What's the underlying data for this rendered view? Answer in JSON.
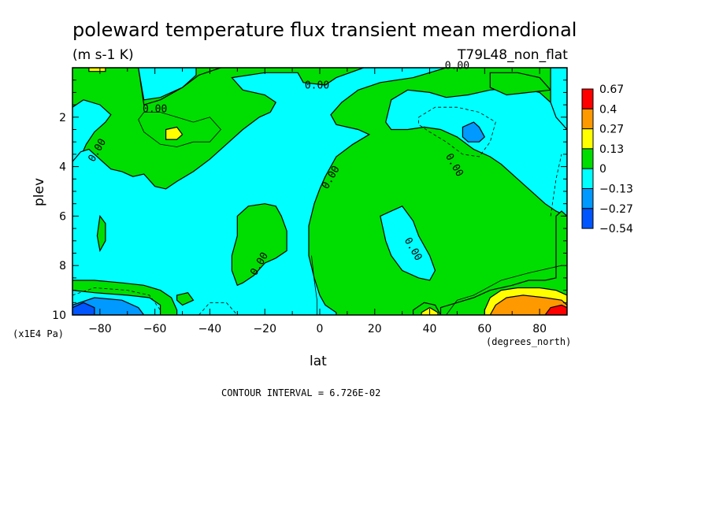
{
  "chart_data": {
    "type": "heatmap",
    "title": "poleward temperature flux transient mean merdional",
    "units": "(m s-1 K)",
    "dataset_label": "T79L48_non_flat",
    "xlabel": "lat",
    "ylabel": "plev",
    "x_units": "(degrees_north)",
    "y_units": "(x1E4 Pa)",
    "xlim": [
      -90,
      90
    ],
    "ylim": [
      10,
      0
    ],
    "x_ticks": [
      -80,
      -60,
      -40,
      -20,
      0,
      20,
      40,
      60,
      80
    ],
    "y_ticks": [
      2,
      4,
      6,
      8,
      10
    ],
    "contour_interval_text": "CONTOUR INTERVAL = 6.726E-02",
    "contour_labels": [
      "0.00",
      "0.00",
      "0.00",
      "0.00",
      "0.00",
      "0.00",
      "0.00",
      "0.00"
    ],
    "colorbar": {
      "levels": [
        "0.67",
        "0.4",
        "0.27",
        "0.13",
        "0",
        "-0.13",
        "-0.27",
        "-0.54"
      ],
      "colors": [
        "#ff0000",
        "#ff9900",
        "#ffff00",
        "#00dd00",
        "#00ffff",
        "#0099ff",
        "#0055ff"
      ]
    },
    "regions": [
      {
        "color": "#00dd00",
        "points": [
          [
            -90,
            0
          ],
          [
            -66,
            0
          ],
          [
            -64,
            1.5
          ],
          [
            -58,
            1.3
          ],
          [
            -50,
            0.8
          ],
          [
            -44,
            0.3
          ],
          [
            -36,
            0
          ],
          [
            -90,
            0
          ]
        ]
      },
      {
        "color": "#00ffff",
        "points": [
          [
            -66,
            0
          ],
          [
            -45,
            0
          ],
          [
            -45,
            0.3
          ],
          [
            -50,
            0.8
          ],
          [
            -58,
            1.2
          ],
          [
            -64,
            1.3
          ]
        ]
      },
      {
        "color": "#00ffff",
        "points": [
          [
            -90,
            1.6
          ],
          [
            -86,
            1.3
          ],
          [
            -80,
            1.5
          ],
          [
            -76,
            1.9
          ],
          [
            -78,
            2.2
          ],
          [
            -82,
            2.6
          ],
          [
            -85,
            3.1
          ],
          [
            -87,
            3.6
          ],
          [
            -90,
            3.8
          ]
        ]
      },
      {
        "color": "#00ffff",
        "points": [
          [
            -90,
            3.8
          ],
          [
            -87,
            3.4
          ],
          [
            -84,
            3.3
          ],
          [
            -80,
            3.7
          ],
          [
            -76,
            4.1
          ],
          [
            -72,
            4.2
          ],
          [
            -68,
            4.4
          ],
          [
            -64,
            4.3
          ],
          [
            -60,
            4.8
          ],
          [
            -56,
            4.9
          ],
          [
            -52,
            4.6
          ],
          [
            -46,
            4.2
          ],
          [
            -40,
            3.7
          ],
          [
            -34,
            3.1
          ],
          [
            -28,
            2.5
          ],
          [
            -22,
            2.0
          ],
          [
            -18,
            1.8
          ],
          [
            -16,
            1.4
          ],
          [
            -20,
            1.1
          ],
          [
            -28,
            0.9
          ],
          [
            -32,
            0.4
          ],
          [
            -20,
            0.2
          ],
          [
            -8,
            0.2
          ],
          [
            -6,
            0.6
          ],
          [
            2,
            0.7
          ],
          [
            6,
            0.4
          ],
          [
            16,
            0
          ],
          [
            46,
            0
          ],
          [
            34,
            0.4
          ],
          [
            22,
            0.6
          ],
          [
            14,
            0.9
          ],
          [
            8,
            1.4
          ],
          [
            4,
            1.9
          ],
          [
            6,
            2.3
          ],
          [
            14,
            2.5
          ],
          [
            18,
            2.7
          ],
          [
            12,
            3.1
          ],
          [
            6,
            3.6
          ],
          [
            2,
            4.4
          ],
          [
            0,
            4.9
          ],
          [
            -2,
            5.5
          ],
          [
            -4,
            6.4
          ],
          [
            -4,
            7.6
          ],
          [
            -2,
            8.5
          ],
          [
            0,
            9.2
          ],
          [
            2,
            9.6
          ],
          [
            6,
            9.9
          ],
          [
            6,
            10
          ],
          [
            -90,
            10
          ]
        ]
      },
      {
        "color": "#00dd00",
        "points": [
          [
            -30,
            6.0
          ],
          [
            -26,
            5.6
          ],
          [
            -20,
            5.5
          ],
          [
            -16,
            5.6
          ],
          [
            -14,
            6.0
          ],
          [
            -12,
            6.6
          ],
          [
            -12,
            7.4
          ],
          [
            -16,
            7.7
          ],
          [
            -20,
            7.9
          ],
          [
            -24,
            8.4
          ],
          [
            -28,
            8.7
          ],
          [
            -30,
            8.8
          ],
          [
            -32,
            8.2
          ],
          [
            -32,
            7.6
          ],
          [
            -30,
            6.8
          ]
        ]
      },
      {
        "color": "#00dd00",
        "points": [
          [
            -80,
            6.0
          ],
          [
            -78,
            6.3
          ],
          [
            -78,
            7.0
          ],
          [
            -80,
            7.4
          ],
          [
            -81,
            6.8
          ]
        ]
      },
      {
        "color": "#00ffff",
        "points": [
          [
            22,
            6.0
          ],
          [
            26,
            5.8
          ],
          [
            30,
            5.6
          ],
          [
            34,
            6.2
          ],
          [
            36,
            6.8
          ],
          [
            40,
            7.6
          ],
          [
            42,
            8.2
          ],
          [
            40,
            8.6
          ],
          [
            36,
            8.5
          ],
          [
            30,
            8.2
          ],
          [
            26,
            7.6
          ],
          [
            24,
            7.0
          ]
        ]
      },
      {
        "color": "#00ffff",
        "points": [
          [
            24,
            2.2
          ],
          [
            26,
            1.3
          ],
          [
            32,
            0.9
          ],
          [
            40,
            1.0
          ],
          [
            46,
            1.2
          ],
          [
            54,
            1.1
          ],
          [
            62,
            0.9
          ],
          [
            72,
            0.8
          ],
          [
            80,
            1.0
          ],
          [
            84,
            1.4
          ],
          [
            88,
            2.0
          ],
          [
            90,
            2.2
          ],
          [
            90,
            6.0
          ],
          [
            86,
            5.8
          ],
          [
            82,
            5.5
          ],
          [
            78,
            5.1
          ],
          [
            72,
            4.5
          ],
          [
            66,
            3.9
          ],
          [
            62,
            3.6
          ],
          [
            56,
            3.3
          ],
          [
            50,
            2.8
          ],
          [
            44,
            2.5
          ],
          [
            38,
            2.4
          ],
          [
            32,
            2.5
          ],
          [
            26,
            2.5
          ]
        ]
      },
      {
        "color": "#00dd00",
        "points": [
          [
            62,
            0.2
          ],
          [
            72,
            0.2
          ],
          [
            80,
            0.4
          ],
          [
            84,
            0.9
          ],
          [
            76,
            1.0
          ],
          [
            68,
            1.1
          ],
          [
            62,
            0.8
          ]
        ]
      },
      {
        "color": "#00ffff",
        "points": [
          [
            84,
            0
          ],
          [
            90,
            0
          ],
          [
            90,
            2.5
          ],
          [
            86,
            2.0
          ],
          [
            84,
            1.4
          ]
        ]
      },
      {
        "color": "#0099ff",
        "points": [
          [
            52,
            2.4
          ],
          [
            56,
            2.2
          ],
          [
            58,
            2.4
          ],
          [
            60,
            2.8
          ],
          [
            58,
            3.0
          ],
          [
            54,
            3.0
          ],
          [
            52,
            2.8
          ]
        ]
      },
      {
        "color": "#ffff00",
        "points": [
          [
            -56,
            2.5
          ],
          [
            -52,
            2.4
          ],
          [
            -50,
            2.7
          ],
          [
            -52,
            2.9
          ],
          [
            -56,
            2.9
          ]
        ]
      },
      {
        "color": "#00dd00",
        "points": [
          [
            -90,
            8.6
          ],
          [
            -82,
            8.6
          ],
          [
            -72,
            8.7
          ],
          [
            -64,
            8.8
          ],
          [
            -58,
            9.0
          ],
          [
            -54,
            9.3
          ],
          [
            -52,
            9.8
          ],
          [
            -52,
            10
          ],
          [
            -90,
            10
          ]
        ]
      },
      {
        "color": "#00ffff",
        "points": [
          [
            -90,
            9.0
          ],
          [
            -82,
            9.1
          ],
          [
            -70,
            9.2
          ],
          [
            -62,
            9.3
          ],
          [
            -58,
            9.6
          ],
          [
            -58,
            10
          ],
          [
            -90,
            10
          ]
        ]
      },
      {
        "color": "#0099ff",
        "points": [
          [
            -90,
            9.6
          ],
          [
            -82,
            9.3
          ],
          [
            -72,
            9.4
          ],
          [
            -66,
            9.7
          ],
          [
            -64,
            10
          ],
          [
            -90,
            10
          ]
        ]
      },
      {
        "color": "#0055ff",
        "points": [
          [
            -90,
            9.7
          ],
          [
            -86,
            9.5
          ],
          [
            -82,
            9.7
          ],
          [
            -82,
            10
          ],
          [
            -90,
            10
          ]
        ]
      },
      {
        "color": "#00dd00",
        "points": [
          [
            -52,
            9.2
          ],
          [
            -48,
            9.1
          ],
          [
            -46,
            9.4
          ],
          [
            -50,
            9.6
          ],
          [
            -52,
            9.4
          ]
        ]
      },
      {
        "color": "#00dd00",
        "points": [
          [
            44,
            9.7
          ],
          [
            56,
            9.3
          ],
          [
            62,
            9.0
          ],
          [
            70,
            8.8
          ],
          [
            76,
            8.6
          ],
          [
            82,
            8.6
          ],
          [
            86,
            8.5
          ],
          [
            86,
            6.0
          ],
          [
            88,
            5.8
          ],
          [
            90,
            6.0
          ],
          [
            90,
            10
          ],
          [
            44,
            10
          ]
        ]
      },
      {
        "color": "#00dd00",
        "points": [
          [
            34,
            9.8
          ],
          [
            38,
            9.5
          ],
          [
            42,
            9.6
          ],
          [
            44,
            10
          ],
          [
            34,
            10
          ]
        ]
      },
      {
        "color": "#ffff00",
        "points": [
          [
            37,
            9.9
          ],
          [
            40,
            9.7
          ],
          [
            43,
            9.9
          ],
          [
            43,
            10
          ],
          [
            37,
            10
          ]
        ]
      },
      {
        "color": "#ffff00",
        "points": [
          [
            60,
            9.8
          ],
          [
            62,
            9.3
          ],
          [
            66,
            9.0
          ],
          [
            72,
            8.9
          ],
          [
            80,
            8.9
          ],
          [
            86,
            9.0
          ],
          [
            90,
            9.2
          ],
          [
            90,
            10
          ],
          [
            60,
            10
          ]
        ]
      },
      {
        "color": "#ff9900",
        "points": [
          [
            62,
            10
          ],
          [
            64,
            9.6
          ],
          [
            68,
            9.3
          ],
          [
            74,
            9.2
          ],
          [
            82,
            9.3
          ],
          [
            88,
            9.4
          ],
          [
            90,
            9.6
          ],
          [
            90,
            10
          ]
        ]
      },
      {
        "color": "#ff0000",
        "points": [
          [
            82,
            10
          ],
          [
            84,
            9.7
          ],
          [
            88,
            9.6
          ],
          [
            90,
            9.7
          ],
          [
            90,
            10
          ]
        ]
      },
      {
        "color": "#ffff00",
        "points": [
          [
            -84,
            0
          ],
          [
            -78,
            0
          ],
          [
            -78,
            0.15
          ],
          [
            -84,
            0.15
          ]
        ]
      }
    ],
    "contour_lines": [
      {
        "dash": false,
        "points": [
          [
            -64,
            1.8
          ],
          [
            -58,
            1.8
          ],
          [
            -52,
            2.0
          ],
          [
            -46,
            2.2
          ],
          [
            -40,
            2.0
          ],
          [
            -36,
            2.5
          ],
          [
            -40,
            3.0
          ],
          [
            -46,
            3.0
          ],
          [
            -52,
            3.2
          ],
          [
            -58,
            3.1
          ],
          [
            -64,
            2.6
          ],
          [
            -66,
            2.1
          ],
          [
            -64,
            1.8
          ]
        ]
      },
      {
        "dash": true,
        "points": [
          [
            36,
            2.0
          ],
          [
            42,
            1.6
          ],
          [
            50,
            1.6
          ],
          [
            58,
            1.8
          ],
          [
            64,
            2.2
          ],
          [
            62,
            3.0
          ],
          [
            58,
            3.6
          ],
          [
            52,
            3.5
          ],
          [
            46,
            3.0
          ],
          [
            40,
            2.6
          ],
          [
            36,
            2.3
          ],
          [
            36,
            2.0
          ]
        ]
      },
      {
        "dash": true,
        "points": [
          [
            -90,
            9.2
          ],
          [
            -82,
            8.9
          ],
          [
            -70,
            9.0
          ],
          [
            -62,
            9.2
          ],
          [
            -58,
            9.8
          ]
        ]
      },
      {
        "dash": true,
        "points": [
          [
            -44,
            10
          ],
          [
            -40,
            9.5
          ],
          [
            -34,
            9.5
          ],
          [
            -30,
            10
          ]
        ]
      },
      {
        "dash": false,
        "points": [
          [
            46,
            10
          ],
          [
            50,
            9.4
          ],
          [
            56,
            9.2
          ],
          [
            66,
            8.6
          ],
          [
            76,
            8.3
          ],
          [
            88,
            8.0
          ]
        ]
      },
      {
        "dash": false,
        "points": [
          [
            -3,
            7.6
          ],
          [
            -2,
            8.6
          ],
          [
            -1,
            9.4
          ],
          [
            -1,
            10
          ]
        ]
      },
      {
        "dash": true,
        "points": [
          [
            84,
            6.0
          ],
          [
            86,
            4.5
          ],
          [
            88,
            3.5
          ]
        ]
      }
    ],
    "contour_label_positions": [
      [
        -60,
        1.8
      ],
      [
        -80,
        3.4
      ],
      [
        5,
        4.5
      ],
      [
        -21,
        8.0
      ],
      [
        33,
        7.4
      ],
      [
        48,
        4.0
      ],
      [
        -1,
        0.85
      ],
      [
        50,
        0.05
      ]
    ]
  }
}
